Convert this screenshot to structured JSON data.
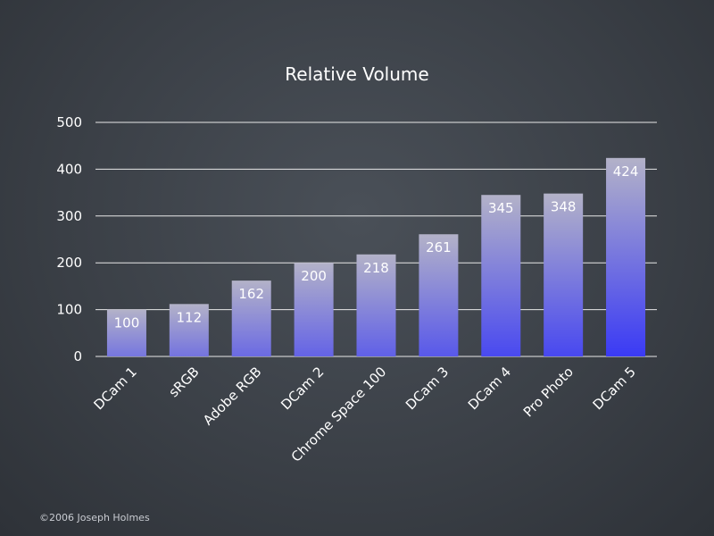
{
  "footer": {
    "copyright": "©2006 Joseph Holmes"
  },
  "colors": {
    "bar_top": "#b3b2c8",
    "bar_bottom_max": "#3a3af5",
    "gridline": "#e8e8e8",
    "text": "#ffffff"
  },
  "chart_data": {
    "type": "bar",
    "title": "Relative Volume",
    "xlabel": "",
    "ylabel": "",
    "categories": [
      "DCam 1",
      "sRGB",
      "Adobe RGB",
      "DCam 2",
      "Chrome Space 100",
      "DCam 3",
      "DCam 4",
      "Pro Photo",
      "DCam 5"
    ],
    "values": [
      100,
      112,
      162,
      200,
      218,
      261,
      345,
      348,
      424
    ],
    "data_labels": [
      "100",
      "112",
      "162",
      "200",
      "218",
      "261",
      "345",
      "348",
      "424"
    ],
    "ylim": [
      0,
      500
    ],
    "yticks": [
      0,
      100,
      200,
      300,
      400,
      500
    ],
    "ytick_labels": [
      "0",
      "100",
      "200",
      "300",
      "400",
      "500"
    ],
    "grid": true,
    "legend": "none"
  }
}
